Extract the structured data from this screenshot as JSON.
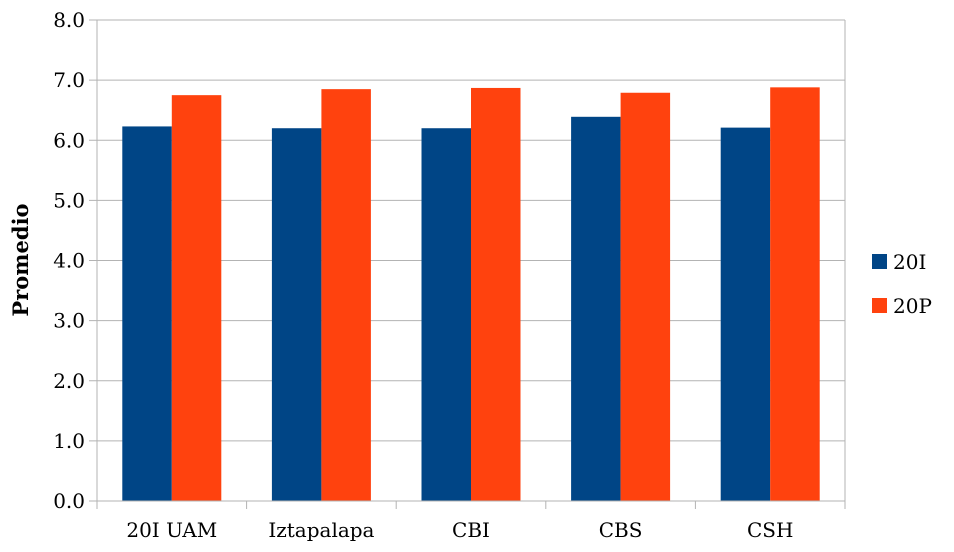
{
  "chart_data": {
    "type": "bar",
    "title": "",
    "xlabel": "",
    "ylabel": "Promedio",
    "ylim": [
      0,
      8
    ],
    "yticks": [
      "0.0",
      "1.0",
      "2.0",
      "3.0",
      "4.0",
      "5.0",
      "6.0",
      "7.0",
      "8.0"
    ],
    "grid": true,
    "legend_position": "right",
    "categories": [
      "20I UAM",
      "Iztapalapa",
      "CBI",
      "CBS",
      "CSH"
    ],
    "series": [
      {
        "name": "20I",
        "color": "#004586",
        "values": [
          6.23,
          6.2,
          6.2,
          6.39,
          6.21
        ]
      },
      {
        "name": "20P",
        "color": "#ff420e",
        "values": [
          6.75,
          6.85,
          6.87,
          6.79,
          6.88
        ]
      }
    ]
  }
}
